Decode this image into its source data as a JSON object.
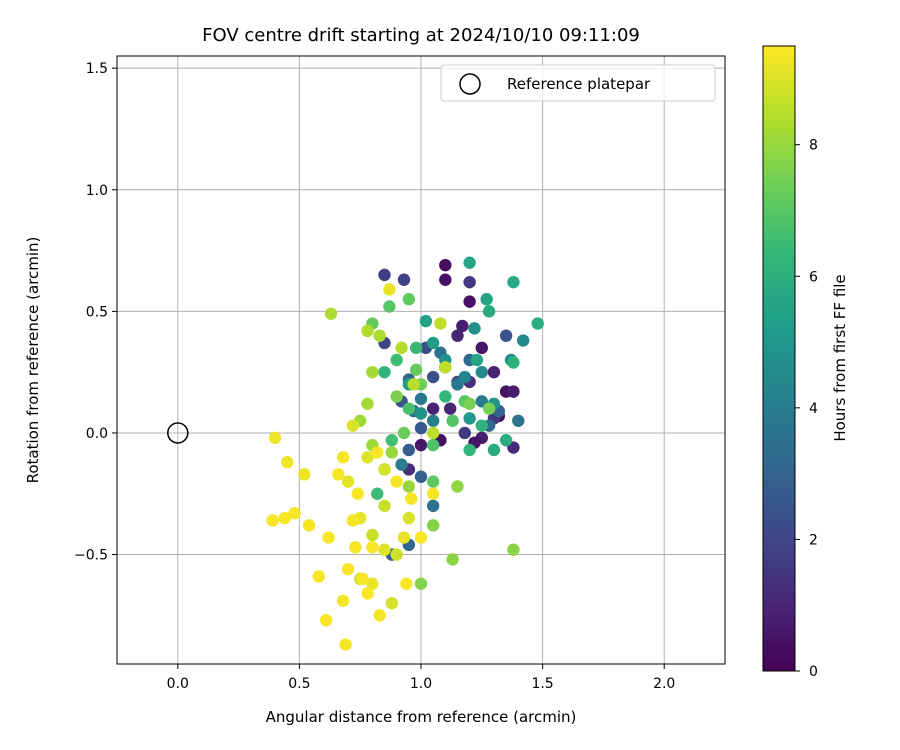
{
  "chart_data": {
    "type": "scatter",
    "title": "FOV centre drift starting at 2024/10/10 09:11:09",
    "xlabel": "Angular distance from reference (arcmin)",
    "ylabel": "Rotation from reference (arcmin)",
    "xlim": [
      -0.25,
      2.25
    ],
    "ylim": [
      -0.95,
      1.55
    ],
    "xticks": [
      0.0,
      0.5,
      1.0,
      1.5,
      2.0
    ],
    "xtick_labels": [
      "0.0",
      "0.5",
      "1.0",
      "1.5",
      "2.0"
    ],
    "yticks": [
      -0.5,
      0.0,
      0.5,
      1.0,
      1.5
    ],
    "ytick_labels": [
      "−0.5",
      "0.0",
      "0.5",
      "1.0",
      "1.5"
    ],
    "grid": true,
    "legend": {
      "position": "top-right",
      "entries": [
        "Reference platepar"
      ]
    },
    "reference_point": {
      "x": 0.0,
      "y": 0.0
    },
    "colorbar": {
      "label": "Hours from first FF file",
      "range": [
        0,
        9.5
      ],
      "ticks": [
        0,
        2,
        4,
        6,
        8
      ],
      "tick_labels": [
        "0",
        "2",
        "4",
        "6",
        "8"
      ],
      "colormap": "viridis",
      "colors": [
        "#440154",
        "#482878",
        "#3e4989",
        "#31688e",
        "#26828e",
        "#1f9e89",
        "#35b779",
        "#6ece58",
        "#b5de2b",
        "#fde725"
      ]
    },
    "points": [
      [
        1.1,
        0.69,
        0.3
      ],
      [
        1.1,
        0.63,
        0.4
      ],
      [
        1.2,
        0.54,
        0.5
      ],
      [
        1.17,
        0.44,
        0.8
      ],
      [
        1.15,
        0.4,
        1.0
      ],
      [
        1.25,
        0.35,
        0.6
      ],
      [
        1.3,
        0.25,
        0.9
      ],
      [
        1.2,
        0.21,
        1.2
      ],
      [
        1.35,
        0.17,
        0.4
      ],
      [
        1.38,
        0.17,
        0.7
      ],
      [
        1.32,
        0.07,
        0.3
      ],
      [
        1.25,
        -0.02,
        0.8
      ],
      [
        1.22,
        -0.04,
        0.5
      ],
      [
        1.3,
        0.06,
        1.5
      ],
      [
        1.38,
        -0.06,
        1.1
      ],
      [
        1.05,
        0.1,
        0.9
      ],
      [
        1.0,
        -0.05,
        0.6
      ],
      [
        0.95,
        -0.15,
        1.3
      ],
      [
        1.08,
        -0.03,
        0.4
      ],
      [
        1.12,
        0.1,
        1.0
      ],
      [
        1.18,
        0.0,
        1.6
      ],
      [
        1.2,
        0.62,
        1.6
      ],
      [
        0.85,
        0.65,
        1.8
      ],
      [
        0.93,
        0.63,
        1.9
      ],
      [
        0.85,
        0.37,
        2.0
      ],
      [
        1.02,
        0.35,
        2.2
      ],
      [
        1.35,
        0.4,
        2.4
      ],
      [
        1.1,
        0.27,
        1.8
      ],
      [
        1.15,
        0.21,
        2.0
      ],
      [
        1.05,
        0.23,
        2.4
      ],
      [
        1.0,
        0.02,
        2.6
      ],
      [
        0.95,
        -0.07,
        2.8
      ],
      [
        0.92,
        0.13,
        2.5
      ],
      [
        1.0,
        -0.18,
        3.0
      ],
      [
        0.88,
        -0.5,
        2.9
      ],
      [
        0.95,
        -0.46,
        3.1
      ],
      [
        1.32,
        0.09,
        3.0
      ],
      [
        1.2,
        0.3,
        3.2
      ],
      [
        1.28,
        0.03,
        3.3
      ],
      [
        1.4,
        0.05,
        3.6
      ],
      [
        0.95,
        0.22,
        3.3
      ],
      [
        0.97,
        0.09,
        3.4
      ],
      [
        1.05,
        -0.3,
        3.5
      ],
      [
        1.08,
        0.33,
        3.6
      ],
      [
        1.15,
        0.2,
        3.8
      ],
      [
        1.25,
        0.13,
        3.9
      ],
      [
        1.0,
        0.14,
        3.8
      ],
      [
        0.92,
        -0.13,
        4.0
      ],
      [
        1.05,
        0.05,
        4.1
      ],
      [
        1.18,
        0.23,
        4.2
      ],
      [
        1.42,
        0.38,
        4.4
      ],
      [
        1.25,
        0.25,
        4.5
      ],
      [
        1.37,
        0.3,
        4.6
      ],
      [
        1.22,
        0.43,
        4.8
      ],
      [
        1.1,
        0.3,
        4.7
      ],
      [
        1.0,
        0.08,
        4.9
      ],
      [
        1.3,
        0.12,
        5.0
      ],
      [
        1.2,
        0.06,
        5.1
      ],
      [
        1.05,
        0.37,
        5.2
      ],
      [
        0.95,
        0.2,
        5.3
      ],
      [
        1.02,
        0.46,
        5.4
      ],
      [
        1.27,
        0.55,
        5.5
      ],
      [
        1.2,
        0.7,
        5.6
      ],
      [
        1.38,
        0.62,
        5.7
      ],
      [
        1.28,
        0.5,
        5.8
      ],
      [
        1.48,
        0.45,
        5.9
      ],
      [
        1.23,
        0.3,
        5.6
      ],
      [
        1.3,
        -0.07,
        5.8
      ],
      [
        1.35,
        -0.03,
        5.9
      ],
      [
        1.38,
        0.29,
        6.0
      ],
      [
        1.25,
        0.03,
        6.1
      ],
      [
        1.2,
        -0.07,
        6.2
      ],
      [
        1.1,
        0.15,
        6.3
      ],
      [
        0.98,
        0.35,
        6.4
      ],
      [
        0.9,
        0.3,
        6.5
      ],
      [
        0.85,
        0.25,
        6.2
      ],
      [
        0.82,
        -0.25,
        6.5
      ],
      [
        0.88,
        -0.03,
        6.6
      ],
      [
        0.95,
        0.1,
        6.7
      ],
      [
        1.05,
        -0.05,
        6.8
      ],
      [
        1.13,
        0.05,
        6.9
      ],
      [
        1.18,
        0.13,
        7.0
      ],
      [
        0.87,
        0.52,
        7.0
      ],
      [
        0.95,
        0.55,
        7.1
      ],
      [
        0.8,
        0.45,
        7.2
      ],
      [
        0.98,
        0.26,
        7.2
      ],
      [
        1.05,
        -0.2,
        7.1
      ],
      [
        0.93,
        0.0,
        7.3
      ],
      [
        0.85,
        -0.15,
        7.4
      ],
      [
        1.0,
        0.2,
        7.4
      ],
      [
        1.2,
        0.12,
        7.5
      ],
      [
        1.28,
        0.1,
        7.5
      ],
      [
        0.9,
        0.15,
        7.6
      ],
      [
        1.05,
        -0.38,
        7.7
      ],
      [
        1.0,
        -0.62,
        7.7
      ],
      [
        1.38,
        -0.48,
        7.8
      ],
      [
        1.13,
        -0.52,
        7.8
      ],
      [
        1.15,
        -0.22,
        7.9
      ],
      [
        0.95,
        -0.22,
        8.0
      ],
      [
        0.88,
        -0.08,
        8.0
      ],
      [
        0.8,
        -0.05,
        8.1
      ],
      [
        0.75,
        0.05,
        8.1
      ],
      [
        0.78,
        0.12,
        8.2
      ],
      [
        0.8,
        0.25,
        8.2
      ],
      [
        0.83,
        0.4,
        8.3
      ],
      [
        0.63,
        0.49,
        8.3
      ],
      [
        0.78,
        0.42,
        8.4
      ],
      [
        0.92,
        0.35,
        8.4
      ],
      [
        0.97,
        0.2,
        8.5
      ],
      [
        1.05,
        0.0,
        8.5
      ],
      [
        1.1,
        0.27,
        8.6
      ],
      [
        1.08,
        0.45,
        8.6
      ],
      [
        0.85,
        -0.3,
        8.7
      ],
      [
        0.8,
        -0.42,
        8.7
      ],
      [
        0.9,
        -0.5,
        8.8
      ],
      [
        0.75,
        -0.6,
        8.8
      ],
      [
        0.88,
        -0.7,
        8.9
      ],
      [
        0.85,
        -0.15,
        8.9
      ],
      [
        0.95,
        -0.35,
        9.0
      ],
      [
        0.72,
        0.03,
        9.0
      ],
      [
        0.78,
        -0.1,
        9.0
      ],
      [
        0.7,
        -0.2,
        9.1
      ],
      [
        0.75,
        -0.35,
        9.1
      ],
      [
        0.85,
        -0.48,
        9.1
      ],
      [
        0.93,
        -0.43,
        9.2
      ],
      [
        0.8,
        -0.62,
        9.2
      ],
      [
        0.87,
        0.59,
        9.2
      ],
      [
        0.4,
        -0.02,
        9.3
      ],
      [
        0.45,
        -0.12,
        9.3
      ],
      [
        0.52,
        -0.17,
        9.3
      ],
      [
        0.48,
        -0.33,
        9.4
      ],
      [
        0.44,
        -0.35,
        9.4
      ],
      [
        0.39,
        -0.36,
        9.4
      ],
      [
        0.54,
        -0.38,
        9.4
      ],
      [
        0.62,
        -0.43,
        9.4
      ],
      [
        0.58,
        -0.59,
        9.4
      ],
      [
        0.61,
        -0.77,
        9.4
      ],
      [
        0.68,
        -0.69,
        9.4
      ],
      [
        0.69,
        -0.87,
        9.4
      ],
      [
        0.7,
        -0.56,
        9.4
      ],
      [
        0.73,
        -0.47,
        9.4
      ],
      [
        0.76,
        -0.6,
        9.4
      ],
      [
        0.83,
        -0.75,
        9.4
      ],
      [
        0.78,
        -0.66,
        9.4
      ],
      [
        0.66,
        -0.17,
        9.4
      ],
      [
        0.74,
        -0.25,
        9.4
      ],
      [
        0.72,
        -0.36,
        9.4
      ],
      [
        0.8,
        -0.47,
        9.4
      ],
      [
        0.82,
        -0.08,
        9.4
      ],
      [
        0.9,
        -0.2,
        9.4
      ],
      [
        0.94,
        -0.62,
        9.4
      ],
      [
        0.96,
        -0.27,
        9.4
      ],
      [
        1.0,
        -0.43,
        9.4
      ],
      [
        1.05,
        -0.25,
        9.4
      ],
      [
        0.68,
        -0.1,
        9.4
      ]
    ]
  }
}
